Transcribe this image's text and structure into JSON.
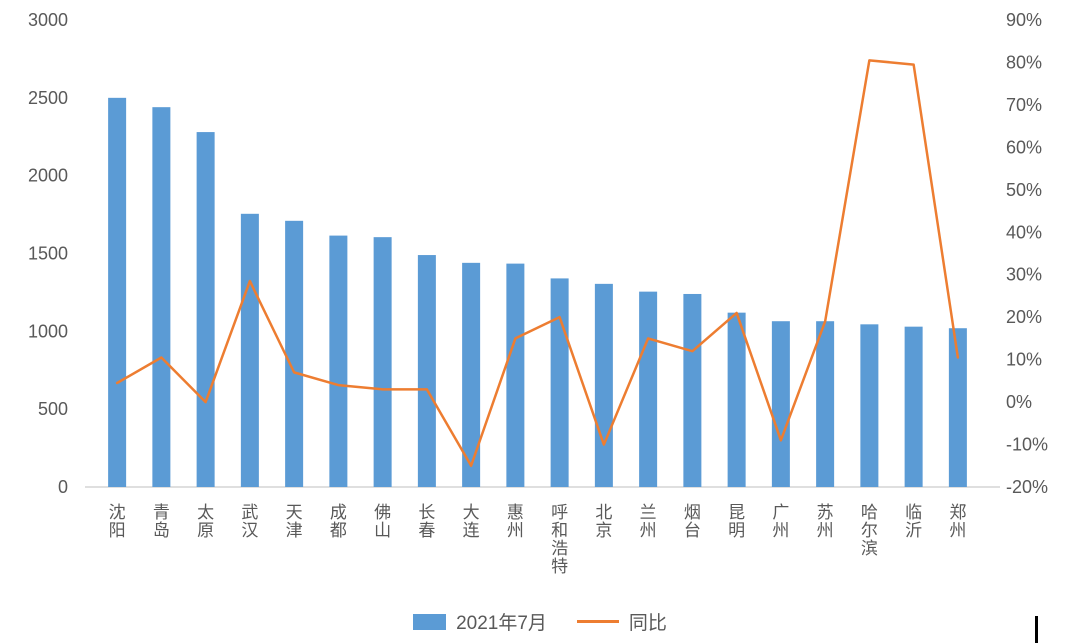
{
  "chart_data": {
    "type": "bar",
    "subtype": "bar+line combo, dual axis",
    "categories": [
      "沈阳",
      "青岛",
      "太原",
      "武汉",
      "天津",
      "成都",
      "佛山",
      "长春",
      "大连",
      "惠州",
      "呼和浩特",
      "北京",
      "兰州",
      "烟台",
      "昆明",
      "广州",
      "苏州",
      "哈尔滨",
      "临沂",
      "郑州"
    ],
    "series": [
      {
        "name": "2021年7月",
        "type": "bar",
        "axis": "left",
        "color": "#5B9BD5",
        "values": [
          2500,
          2440,
          2280,
          1755,
          1710,
          1615,
          1605,
          1490,
          1440,
          1435,
          1340,
          1305,
          1255,
          1240,
          1120,
          1065,
          1065,
          1045,
          1030,
          1020
        ]
      },
      {
        "name": "同比",
        "type": "line",
        "axis": "right",
        "color": "#ED7D31",
        "values": [
          4.5,
          10.5,
          0,
          28.5,
          7,
          4,
          3,
          3,
          -15,
          15,
          20,
          -10,
          15,
          12,
          21,
          -9,
          19,
          80.5,
          79.5,
          10.5
        ]
      }
    ],
    "left_axis": {
      "min": 0,
      "max": 3000,
      "step": 500,
      "ticks": [
        "0",
        "500",
        "1000",
        "1500",
        "2000",
        "2500",
        "3000"
      ]
    },
    "right_axis": {
      "min": -20,
      "max": 90,
      "step": 10,
      "ticks": [
        "-20%",
        "-10%",
        "0%",
        "10%",
        "20%",
        "30%",
        "40%",
        "50%",
        "60%",
        "70%",
        "80%",
        "90%"
      ]
    },
    "legend": [
      {
        "label": "2021年7月",
        "swatch": "bar",
        "color": "#5B9BD5"
      },
      {
        "label": "同比",
        "swatch": "line",
        "color": "#ED7D31"
      }
    ],
    "legend_position": "bottom",
    "grid": false,
    "axis_text_color": "#595959",
    "axis_line_color": "#BFBFBF"
  }
}
